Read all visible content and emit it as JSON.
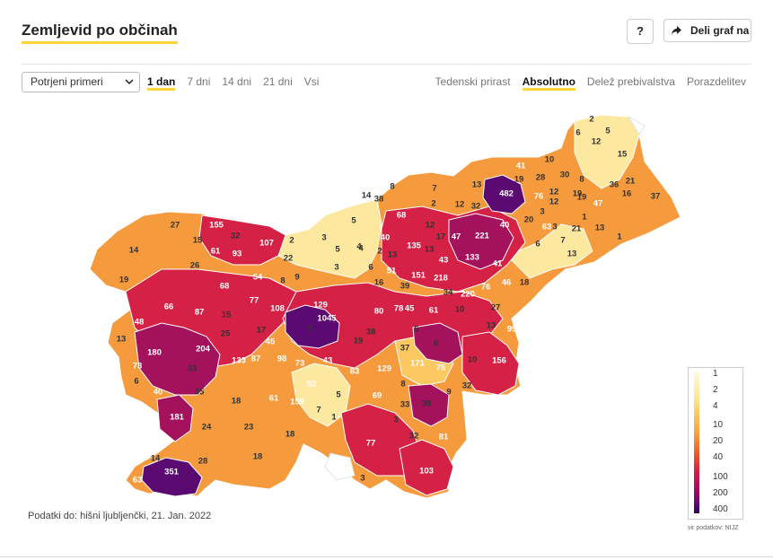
{
  "header": {
    "title": "Zemljevid po občinah",
    "help_label": "?",
    "share_label": "Deli graf na"
  },
  "controls": {
    "select_value": "Potrjeni primeri",
    "period_tabs": [
      {
        "label": "1 dan",
        "active": true
      },
      {
        "label": "7 dni",
        "active": false
      },
      {
        "label": "14 dni",
        "active": false
      },
      {
        "label": "21 dni",
        "active": false
      },
      {
        "label": "Vsi",
        "active": false
      }
    ],
    "mode_tabs": [
      {
        "label": "Tedenski prirast",
        "active": false
      },
      {
        "label": "Absolutno",
        "active": true
      },
      {
        "label": "Delež prebivalstva",
        "active": false
      },
      {
        "label": "Porazdelitev",
        "active": false
      }
    ]
  },
  "legend": {
    "labels": [
      "1",
      "2",
      "4",
      "10",
      "20",
      "40",
      "100",
      "200",
      "400"
    ],
    "source": "vir podatkov: NIJZ"
  },
  "footnote": "Podatki do: hišni ljubljenčki, 21. Jan. 2022",
  "colors": {
    "accent": "#ffd43b",
    "scale": [
      "#fffbe0",
      "#fde8a0",
      "#fcc862",
      "#f59b3e",
      "#ec7033",
      "#d42145",
      "#a4125e",
      "#5a0a70"
    ]
  },
  "map_values": [
    "2",
    "6",
    "5",
    "12",
    "15",
    "10",
    "41",
    "19",
    "30",
    "8",
    "28",
    "19",
    "12",
    "36",
    "21",
    "16",
    "37",
    "8",
    "7",
    "13",
    "482",
    "76",
    "12",
    "19",
    "47",
    "14",
    "38",
    "2",
    "12",
    "32",
    "63",
    "1",
    "21",
    "7",
    "13",
    "13",
    "1",
    "68",
    "12",
    "17",
    "47",
    "221",
    "40",
    "20",
    "3",
    "5",
    "3",
    "27",
    "155",
    "32",
    "107",
    "2",
    "40",
    "135",
    "13",
    "41",
    "3",
    "6",
    "4",
    "14",
    "15",
    "61",
    "93",
    "22",
    "5",
    "4",
    "2",
    "13",
    "43",
    "133",
    "26",
    "54",
    "3",
    "6",
    "51",
    "151",
    "218",
    "76",
    "46",
    "18",
    "19",
    "68",
    "77",
    "8",
    "9",
    "16",
    "39",
    "34",
    "220",
    "66",
    "87",
    "15",
    "108",
    "129",
    "80",
    "78",
    "45",
    "61",
    "10",
    "27",
    "48",
    "5",
    "1045",
    "38",
    "99",
    "13",
    "5",
    "13",
    "25",
    "17",
    "45",
    "19",
    "37",
    "6",
    "180",
    "204",
    "133",
    "87",
    "98",
    "73",
    "43",
    "83",
    "129",
    "75",
    "10",
    "156",
    "73",
    "33",
    "171",
    "6",
    "40",
    "35",
    "52",
    "5",
    "8",
    "9",
    "32",
    "18",
    "61",
    "69",
    "33",
    "38",
    "181",
    "159",
    "7",
    "1",
    "3",
    "24",
    "23",
    "18",
    "77",
    "32",
    "81",
    "18",
    "28",
    "103",
    "14",
    "351",
    "63",
    "3"
  ],
  "icons": [
    "chevron-down-icon",
    "share-arrow-icon"
  ]
}
